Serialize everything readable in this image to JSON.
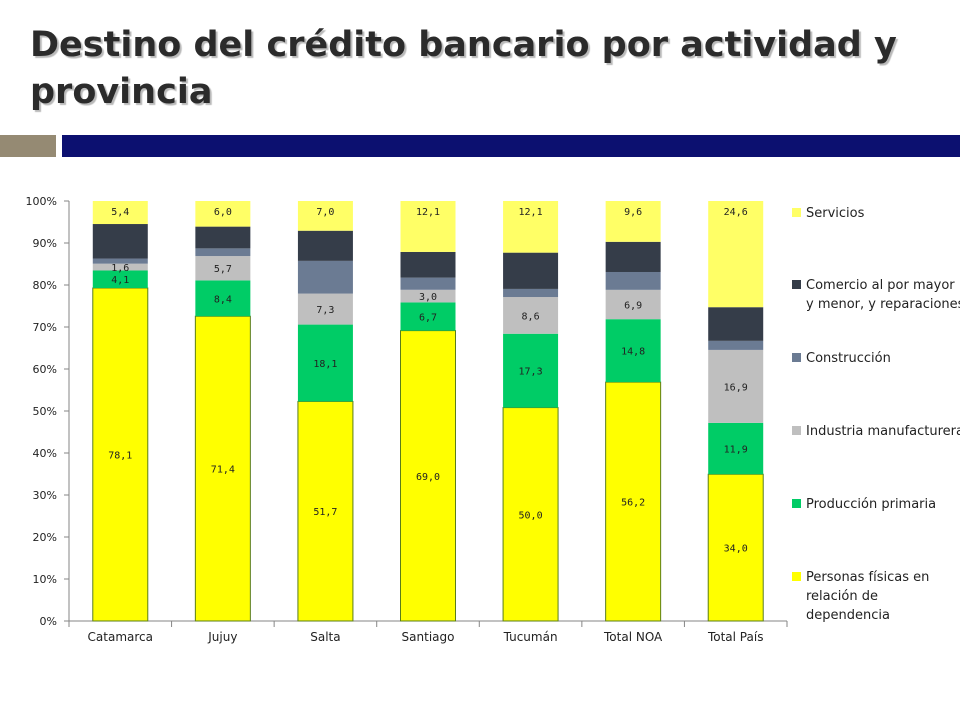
{
  "header": {
    "title": "Destino del crédito bancario por actividad y provincia"
  },
  "chart_data": {
    "type": "bar",
    "stacked": "percent",
    "categories": [
      "Catamarca",
      "Jujuy",
      "Salta",
      "Santiago",
      "Tucumán",
      "Total NOA",
      "Total País"
    ],
    "y_tick_labels": [
      "0%",
      "10%",
      "20%",
      "30%",
      "40%",
      "50%",
      "60%",
      "70%",
      "80%",
      "90%",
      "100%"
    ],
    "ylim": [
      0,
      100
    ],
    "legend_position": "right",
    "series": [
      {
        "name": "Personas físicas en relación de dependencia",
        "color": "#ffff00",
        "values": [
          78.1,
          71.4,
          51.7,
          69.0,
          50.0,
          56.2,
          34.0
        ],
        "labels": [
          "78,1",
          "71,4",
          "51,7",
          "69,0",
          "50,0",
          "56,2",
          "34,0"
        ]
      },
      {
        "name": "Producción primaria",
        "color": "#00cc66",
        "values": [
          4.1,
          8.4,
          18.1,
          6.7,
          17.3,
          14.8,
          11.9
        ],
        "labels": [
          "4,1",
          "8,4",
          "18,1",
          "6,7",
          "17,3",
          "14,8",
          "11,9"
        ]
      },
      {
        "name": "Industria manufacturera",
        "color": "#bfbfbf",
        "values": [
          1.6,
          5.7,
          7.3,
          3.0,
          8.6,
          6.9,
          16.9
        ],
        "labels": [
          "1,6",
          "5,7",
          "7,3",
          "3,0",
          "8,6",
          "6,9",
          "16,9"
        ]
      },
      {
        "name": "Construcción",
        "color": "#6b7b93",
        "values": [
          1.2,
          1.8,
          7.7,
          2.9,
          1.9,
          4.2,
          2.1
        ],
        "labels": [
          "",
          "",
          "",
          "",
          "",
          "",
          ""
        ]
      },
      {
        "name": "Comercio al por mayor y menor, y reparaciones",
        "color": "#353d49",
        "values": [
          8.1,
          5.1,
          7.1,
          6.1,
          8.5,
          7.1,
          7.8
        ],
        "labels": [
          "",
          "",
          "",
          "",
          "",
          "",
          ""
        ]
      },
      {
        "name": "Servicios",
        "color": "#ffff66",
        "values": [
          5.4,
          6.0,
          7.0,
          12.1,
          12.1,
          9.6,
          24.6
        ],
        "labels": [
          "5,4",
          "6,0",
          "7,0",
          "12,1",
          "12,1",
          "9,6",
          "24,6"
        ]
      }
    ]
  }
}
